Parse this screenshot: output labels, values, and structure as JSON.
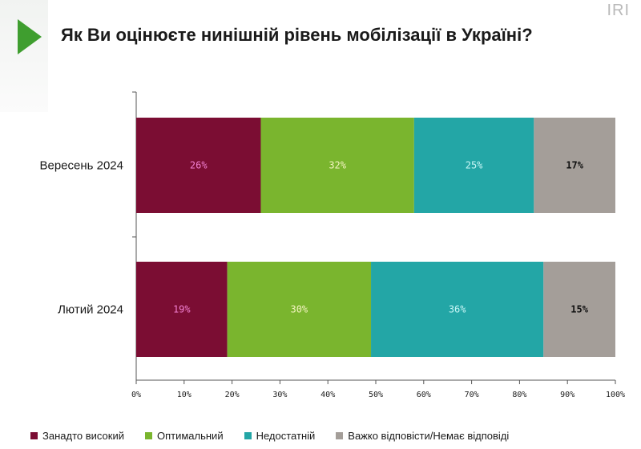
{
  "logo": "IRI",
  "chart_data": {
    "type": "bar",
    "orientation": "horizontal",
    "stacked": true,
    "title": "Як Ви оцінюєте нинішній рівень мобілізації в Україні?",
    "categories": [
      "Вересень 2024",
      "Лютий 2024"
    ],
    "series": [
      {
        "name": "Занадто високий",
        "color": "#7b0d33",
        "label_color": "#f07fd0",
        "values": [
          26,
          19
        ]
      },
      {
        "name": "Оптимальний",
        "color": "#7ab52e",
        "label_color": "#f3f3c0",
        "values": [
          32,
          30
        ]
      },
      {
        "name": "Недостатній",
        "color": "#23a6a6",
        "label_color": "#c8f6f6",
        "values": [
          25,
          36
        ]
      },
      {
        "name": "Важко відповісти/Немає відповіді",
        "color": "#a49e99",
        "label_color": "#111111",
        "values": [
          17,
          15
        ]
      }
    ],
    "value_suffix": "%",
    "xlim": [
      0,
      100
    ],
    "xticks": [
      "0%",
      "10%",
      "20%",
      "30%",
      "40%",
      "50%",
      "60%",
      "70%",
      "80%",
      "90%",
      "100%"
    ],
    "grid": false,
    "legend_position": "bottom"
  }
}
